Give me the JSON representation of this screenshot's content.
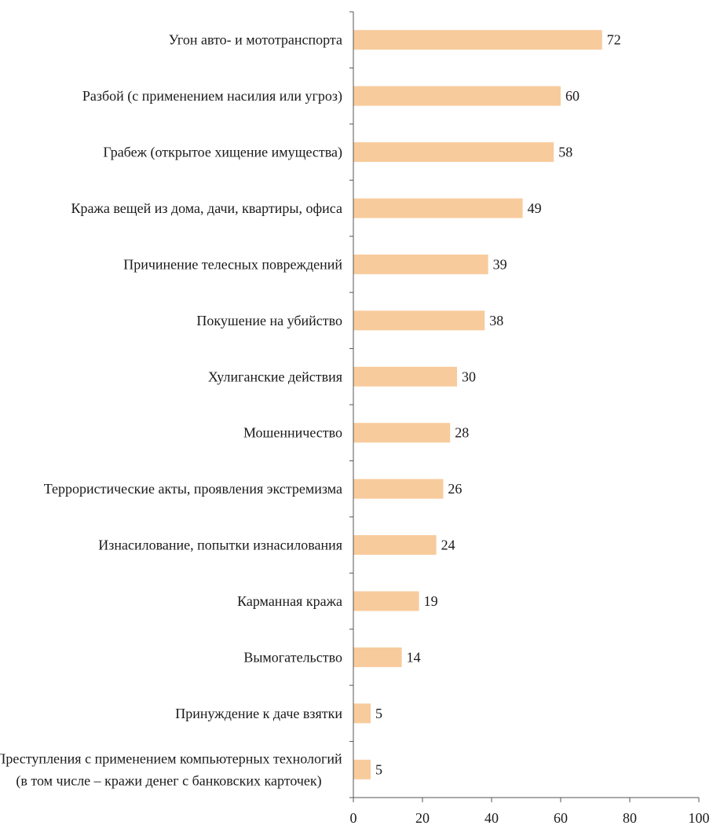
{
  "chart_data": {
    "type": "bar",
    "orientation": "horizontal",
    "categories": [
      [
        "Угон авто- и мототранспорта"
      ],
      [
        "Разбой (с применением насилия или угроз)"
      ],
      [
        "Грабеж (открытое хищение имущества)"
      ],
      [
        "Кража вещей из дома, дачи, квартиры, офиса"
      ],
      [
        "Причинение телесных повреждений"
      ],
      [
        "Покушение на убийство"
      ],
      [
        "Хулиганские действия"
      ],
      [
        "Мошенничество"
      ],
      [
        "Террористические акты, проявления экстремизма"
      ],
      [
        "Изнасилование, попытки изнасилования"
      ],
      [
        "Карманная кража"
      ],
      [
        "Вымогательство"
      ],
      [
        "Принуждение к даче взятки"
      ],
      [
        "Преступления с применением компьютерных технологий",
        "(в том числе – кражи денег с банковских карточек)"
      ]
    ],
    "values": [
      72,
      60,
      58,
      49,
      39,
      38,
      30,
      28,
      26,
      24,
      19,
      14,
      5,
      5
    ],
    "xlim": [
      0,
      100
    ],
    "xticks": [
      0,
      20,
      40,
      60,
      80,
      100
    ],
    "title": "",
    "xlabel": "",
    "ylabel": "",
    "grid": false,
    "legend": "none",
    "colors": {
      "bar": "#f8cb9c",
      "axis": "#555555",
      "text": "#1a1a1a"
    }
  }
}
